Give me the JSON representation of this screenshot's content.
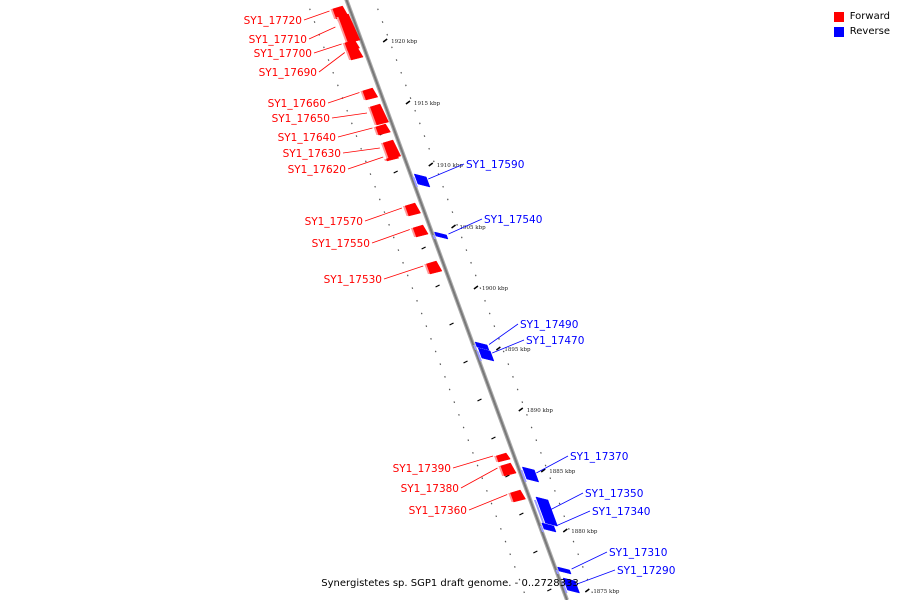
{
  "caption": "Synergistetes sp. SGP1 draft genome. - 0..2728333",
  "legend": [
    {
      "label": "Forward",
      "color": "#ff0000"
    },
    {
      "label": "Reverse",
      "color": "#0000ff"
    }
  ],
  "colors": {
    "forward": "#ff0000",
    "reverse": "#0000ff",
    "axis": "#999999"
  },
  "scale": [
    {
      "label": "1920 kbp",
      "kbp": 1920
    },
    {
      "label": "1915 kbp",
      "kbp": 1915
    },
    {
      "label": "1910 kbp",
      "kbp": 1910
    },
    {
      "label": "1905 kbp",
      "kbp": 1905
    },
    {
      "label": "1900 kbp",
      "kbp": 1900
    },
    {
      "label": "1895 kbp",
      "kbp": 1895
    },
    {
      "label": "1890 kbp",
      "kbp": 1890
    },
    {
      "label": "1885 kbp",
      "kbp": 1885
    },
    {
      "label": "1880 kbp",
      "kbp": 1880
    },
    {
      "label": "1875 kbp",
      "kbp": 1875
    }
  ],
  "genes": [
    {
      "name": "SY1_17720",
      "strand": "forward"
    },
    {
      "name": "SY1_17710",
      "strand": "forward"
    },
    {
      "name": "SY1_17700",
      "strand": "forward"
    },
    {
      "name": "SY1_17690",
      "strand": "forward"
    },
    {
      "name": "SY1_17660",
      "strand": "forward"
    },
    {
      "name": "SY1_17650",
      "strand": "forward"
    },
    {
      "name": "SY1_17640",
      "strand": "forward"
    },
    {
      "name": "SY1_17630",
      "strand": "forward"
    },
    {
      "name": "SY1_17620",
      "strand": "forward"
    },
    {
      "name": "SY1_17590",
      "strand": "reverse"
    },
    {
      "name": "SY1_17570",
      "strand": "forward"
    },
    {
      "name": "SY1_17550",
      "strand": "forward"
    },
    {
      "name": "SY1_17540",
      "strand": "reverse"
    },
    {
      "name": "SY1_17530",
      "strand": "forward"
    },
    {
      "name": "SY1_17490",
      "strand": "reverse"
    },
    {
      "name": "SY1_17470",
      "strand": "reverse"
    },
    {
      "name": "SY1_17390",
      "strand": "forward"
    },
    {
      "name": "SY1_17380",
      "strand": "forward"
    },
    {
      "name": "SY1_17370",
      "strand": "reverse"
    },
    {
      "name": "SY1_17360",
      "strand": "forward"
    },
    {
      "name": "SY1_17350",
      "strand": "reverse"
    },
    {
      "name": "SY1_17340",
      "strand": "reverse"
    },
    {
      "name": "SY1_17310",
      "strand": "reverse"
    },
    {
      "name": "SY1_17290",
      "strand": "reverse"
    }
  ]
}
